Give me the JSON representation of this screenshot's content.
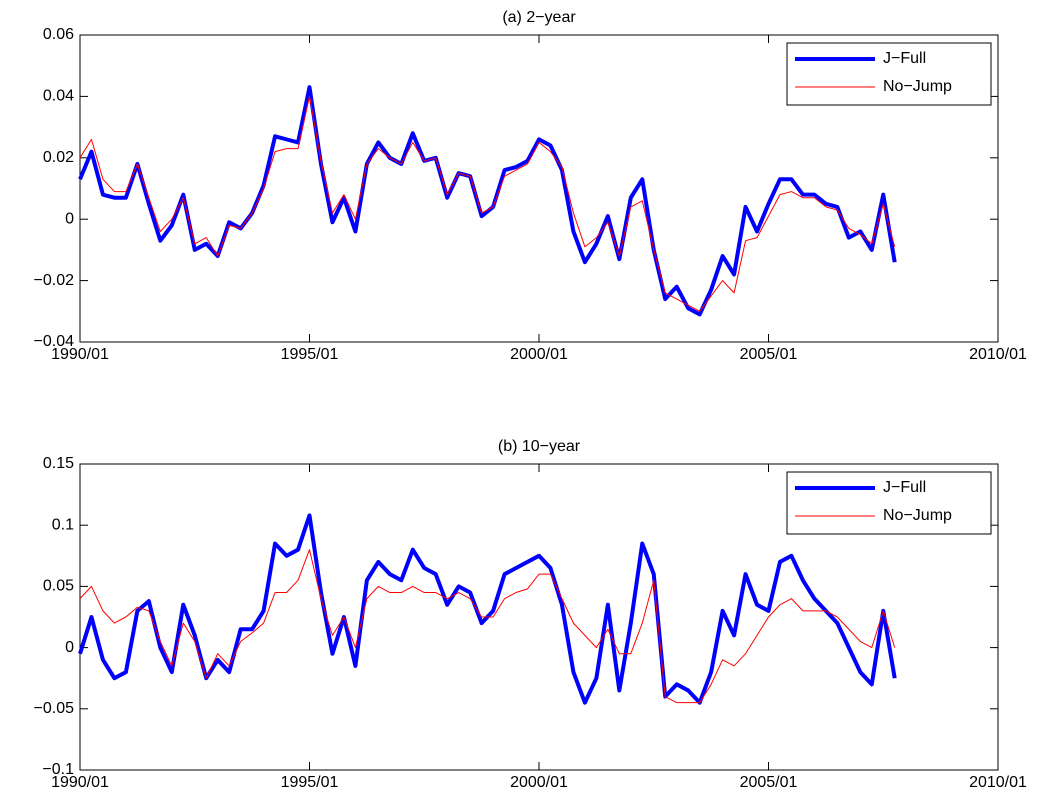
{
  "chart_data": [
    {
      "type": "line",
      "title": "(a) 2−year",
      "x": [
        "1990/01",
        "1990/04",
        "1990/07",
        "1990/10",
        "1991/01",
        "1991/04",
        "1991/07",
        "1991/10",
        "1992/01",
        "1992/04",
        "1992/07",
        "1992/10",
        "1993/01",
        "1993/04",
        "1993/07",
        "1993/10",
        "1994/01",
        "1994/04",
        "1994/07",
        "1994/10",
        "1995/01",
        "1995/04",
        "1995/07",
        "1995/10",
        "1996/01",
        "1996/04",
        "1996/07",
        "1996/10",
        "1997/01",
        "1997/04",
        "1997/07",
        "1997/10",
        "1998/01",
        "1998/04",
        "1998/07",
        "1998/10",
        "1999/01",
        "1999/04",
        "1999/07",
        "1999/10",
        "2000/01",
        "2000/04",
        "2000/07",
        "2000/10",
        "2001/01",
        "2001/04",
        "2001/07",
        "2001/10",
        "2002/01",
        "2002/04",
        "2002/07",
        "2002/10",
        "2003/01",
        "2003/04",
        "2003/07",
        "2003/10",
        "2004/01",
        "2004/04",
        "2004/07",
        "2004/10",
        "2005/01",
        "2005/04",
        "2005/07",
        "2005/10",
        "2006/01",
        "2006/04",
        "2006/07",
        "2006/10",
        "2007/01",
        "2007/04",
        "2007/07",
        "2007/10"
      ],
      "series": [
        {
          "name": "J−Full",
          "color": "#0000ff",
          "values": [
            0.013,
            0.022,
            0.008,
            0.007,
            0.007,
            0.018,
            0.005,
            -0.007,
            -0.002,
            0.008,
            -0.01,
            -0.008,
            -0.012,
            -0.001,
            -0.003,
            0.002,
            0.011,
            0.027,
            0.026,
            0.025,
            0.043,
            0.018,
            -0.001,
            0.007,
            -0.004,
            0.018,
            0.025,
            0.02,
            0.018,
            0.028,
            0.019,
            0.02,
            0.007,
            0.015,
            0.014,
            0.001,
            0.004,
            0.016,
            0.017,
            0.019,
            0.026,
            0.024,
            0.016,
            -0.004,
            -0.014,
            -0.008,
            0.001,
            -0.013,
            0.007,
            0.013,
            -0.01,
            -0.026,
            -0.022,
            -0.029,
            -0.031,
            -0.023,
            -0.012,
            -0.018,
            0.004,
            -0.004,
            0.005,
            0.013,
            0.013,
            0.008,
            0.008,
            0.005,
            0.004,
            -0.006,
            -0.004,
            -0.01,
            0.008,
            -0.014
          ]
        },
        {
          "name": "No−Jump",
          "color": "#ff0000",
          "values": [
            0.02,
            0.026,
            0.013,
            0.009,
            0.009,
            0.018,
            0.007,
            -0.004,
            0.0,
            0.007,
            -0.008,
            -0.006,
            -0.012,
            -0.002,
            -0.003,
            0.002,
            0.01,
            0.022,
            0.023,
            0.023,
            0.04,
            0.019,
            0.002,
            0.008,
            0.0,
            0.018,
            0.023,
            0.02,
            0.018,
            0.025,
            0.019,
            0.02,
            0.008,
            0.015,
            0.014,
            0.002,
            0.004,
            0.014,
            0.016,
            0.018,
            0.025,
            0.022,
            0.017,
            0.002,
            -0.009,
            -0.006,
            -0.001,
            -0.012,
            0.004,
            0.006,
            -0.01,
            -0.024,
            -0.026,
            -0.028,
            -0.03,
            -0.025,
            -0.02,
            -0.024,
            -0.007,
            -0.006,
            0.001,
            0.008,
            0.009,
            0.007,
            0.007,
            0.004,
            0.003,
            -0.003,
            -0.005,
            -0.008,
            0.005,
            -0.009
          ]
        }
      ],
      "xlim": [
        "1990/01",
        "2010/01"
      ],
      "xticks": [
        "1990/01",
        "1995/01",
        "2000/01",
        "2005/01",
        "2010/01"
      ],
      "ylim": [
        -0.04,
        0.06
      ],
      "yticks": [
        {
          "value": -0.04,
          "label": "−0.04"
        },
        {
          "value": -0.02,
          "label": "−0.02"
        },
        0,
        0.02,
        0.04,
        0.06
      ],
      "legend": "upper-right"
    },
    {
      "type": "line",
      "title": "(b) 10−year",
      "x": [
        "1990/01",
        "1990/04",
        "1990/07",
        "1990/10",
        "1991/01",
        "1991/04",
        "1991/07",
        "1991/10",
        "1992/01",
        "1992/04",
        "1992/07",
        "1992/10",
        "1993/01",
        "1993/04",
        "1993/07",
        "1993/10",
        "1994/01",
        "1994/04",
        "1994/07",
        "1994/10",
        "1995/01",
        "1995/04",
        "1995/07",
        "1995/10",
        "1996/01",
        "1996/04",
        "1996/07",
        "1996/10",
        "1997/01",
        "1997/04",
        "1997/07",
        "1997/10",
        "1998/01",
        "1998/04",
        "1998/07",
        "1998/10",
        "1999/01",
        "1999/04",
        "1999/07",
        "1999/10",
        "2000/01",
        "2000/04",
        "2000/07",
        "2000/10",
        "2001/01",
        "2001/04",
        "2001/07",
        "2001/10",
        "2002/01",
        "2002/04",
        "2002/07",
        "2002/10",
        "2003/01",
        "2003/04",
        "2003/07",
        "2003/10",
        "2004/01",
        "2004/04",
        "2004/07",
        "2004/10",
        "2005/01",
        "2005/04",
        "2005/07",
        "2005/10",
        "2006/01",
        "2006/04",
        "2006/07",
        "2006/10",
        "2007/01",
        "2007/04",
        "2007/07",
        "2007/10"
      ],
      "series": [
        {
          "name": "J−Full",
          "color": "#0000ff",
          "values": [
            -0.005,
            0.025,
            -0.01,
            -0.025,
            -0.02,
            0.03,
            0.038,
            0.0,
            -0.02,
            0.035,
            0.01,
            -0.025,
            -0.01,
            -0.02,
            0.015,
            0.015,
            0.03,
            0.085,
            0.075,
            0.08,
            0.108,
            0.045,
            -0.005,
            0.025,
            -0.015,
            0.055,
            0.07,
            0.06,
            0.055,
            0.08,
            0.065,
            0.06,
            0.035,
            0.05,
            0.045,
            0.02,
            0.03,
            0.06,
            0.065,
            0.07,
            0.075,
            0.065,
            0.035,
            -0.02,
            -0.045,
            -0.025,
            0.035,
            -0.035,
            0.02,
            0.085,
            0.06,
            -0.04,
            -0.03,
            -0.035,
            -0.045,
            -0.02,
            0.03,
            0.01,
            0.06,
            0.035,
            0.03,
            0.07,
            0.075,
            0.055,
            0.04,
            0.03,
            0.02,
            0.0,
            -0.02,
            -0.03,
            0.03,
            -0.025
          ]
        },
        {
          "name": "No−Jump",
          "color": "#ff0000",
          "values": [
            0.04,
            0.05,
            0.03,
            0.02,
            0.025,
            0.033,
            0.03,
            0.005,
            -0.015,
            0.02,
            0.005,
            -0.025,
            -0.005,
            -0.015,
            0.005,
            0.012,
            0.02,
            0.045,
            0.045,
            0.055,
            0.08,
            0.04,
            0.01,
            0.025,
            0.0,
            0.04,
            0.05,
            0.045,
            0.045,
            0.05,
            0.045,
            0.045,
            0.04,
            0.045,
            0.04,
            0.025,
            0.025,
            0.04,
            0.045,
            0.048,
            0.06,
            0.06,
            0.04,
            0.02,
            0.01,
            0.0,
            0.015,
            -0.005,
            -0.005,
            0.02,
            0.055,
            -0.04,
            -0.045,
            -0.045,
            -0.045,
            -0.03,
            -0.01,
            -0.015,
            -0.005,
            0.01,
            0.025,
            0.035,
            0.04,
            0.03,
            0.03,
            0.03,
            0.025,
            0.015,
            0.005,
            0.0,
            0.03,
            0.0
          ]
        }
      ],
      "xlim": [
        "1990/01",
        "2010/01"
      ],
      "xticks": [
        "1990/01",
        "1995/01",
        "2000/01",
        "2005/01",
        "2010/01"
      ],
      "ylim": [
        -0.1,
        0.15
      ],
      "yticks": [
        {
          "value": -0.1,
          "label": "−0.1"
        },
        {
          "value": -0.05,
          "label": "−0.05"
        },
        0,
        0.05,
        0.1,
        0.15
      ],
      "legend": "upper-right"
    }
  ]
}
